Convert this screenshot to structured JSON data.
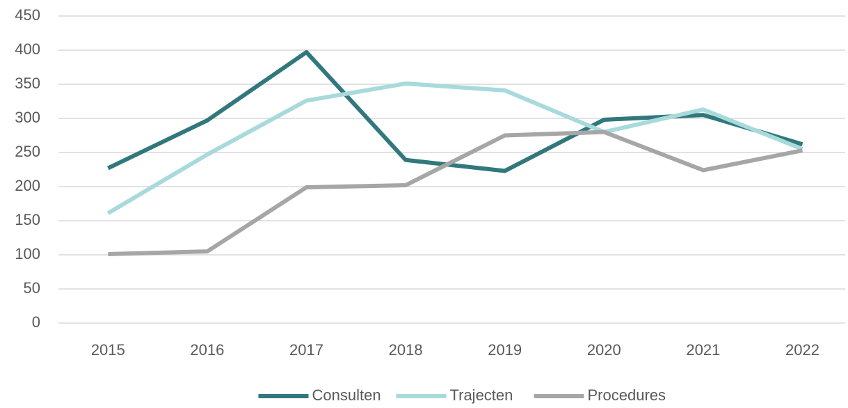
{
  "chart_data": {
    "type": "line",
    "categories": [
      "2015",
      "2016",
      "2017",
      "2018",
      "2019",
      "2020",
      "2021",
      "2022"
    ],
    "series": [
      {
        "name": "Consulten",
        "color": "#31787c",
        "values": [
          227,
          297,
          397,
          239,
          223,
          298,
          305,
          262
        ]
      },
      {
        "name": "Trajecten",
        "color": "#a8dadb",
        "values": [
          161,
          247,
          326,
          351,
          341,
          280,
          313,
          255
        ]
      },
      {
        "name": "Procedures",
        "color": "#a6a6a6",
        "values": [
          101,
          105,
          199,
          202,
          275,
          280,
          224,
          253
        ]
      }
    ],
    "ylim": [
      0,
      450
    ],
    "yticks": [
      0,
      50,
      100,
      150,
      200,
      250,
      300,
      350,
      400,
      450
    ],
    "grid": true,
    "legend": "bottom"
  }
}
